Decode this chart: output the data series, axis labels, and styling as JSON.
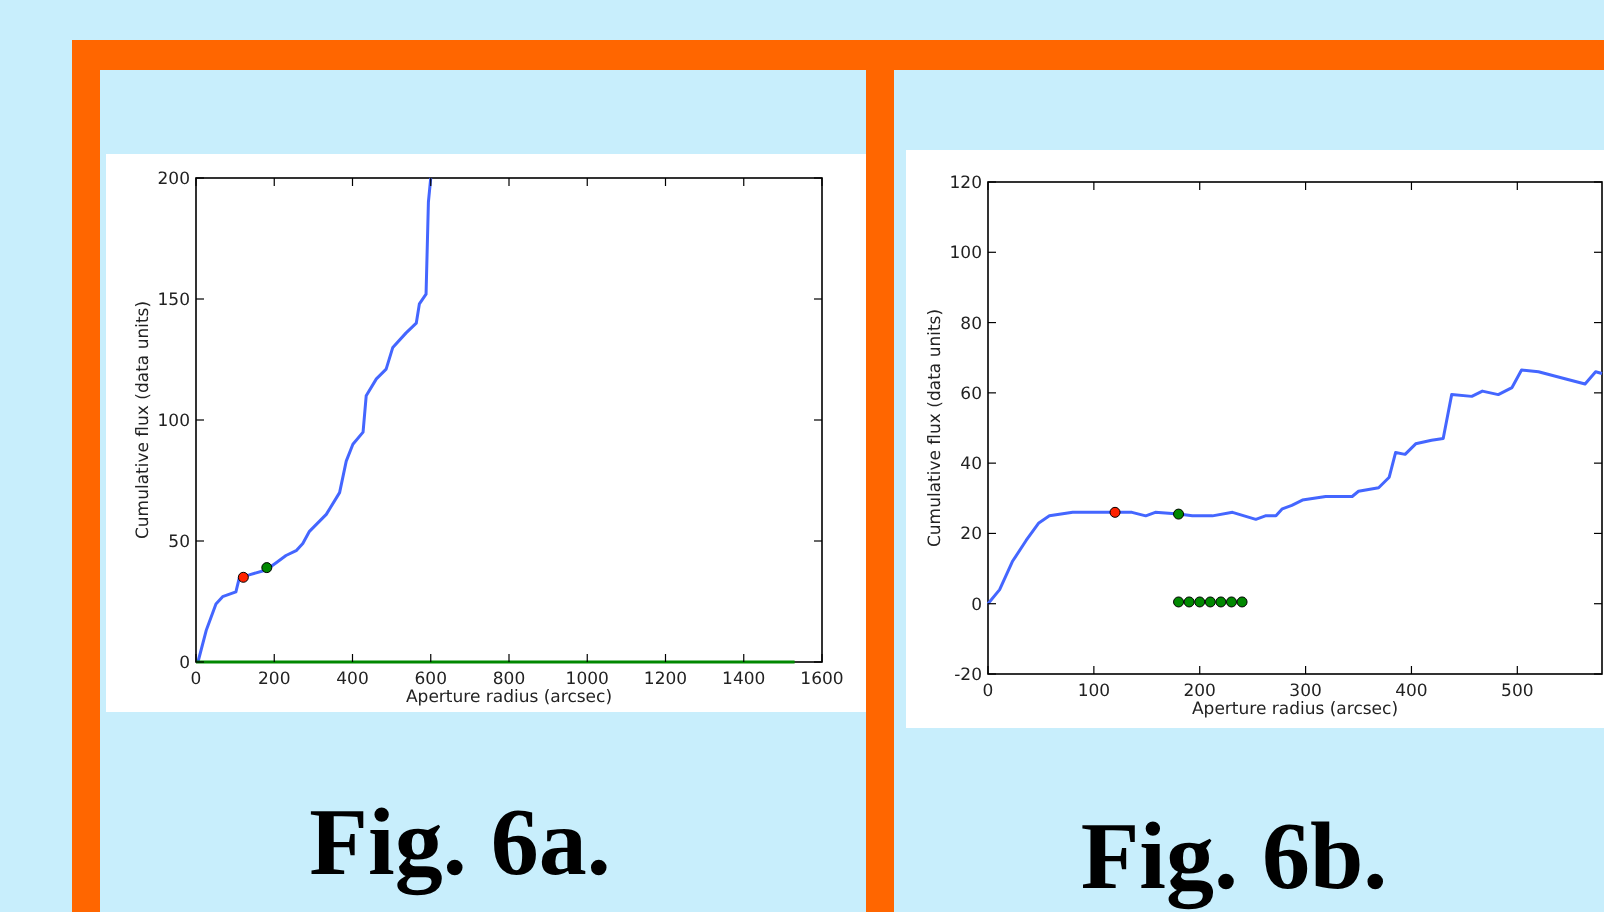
{
  "chart_data": [
    {
      "type": "line",
      "title": "Fig. 6a.",
      "xlabel": "Aperture radius (arcsec)",
      "ylabel": "Cumulative flux (data units)",
      "xlim": [
        0,
        1600
      ],
      "xticks": [
        0,
        200,
        400,
        600,
        800,
        1000,
        1200,
        1400,
        1600
      ],
      "ylim": [
        0,
        200
      ],
      "yticks": [
        0,
        50,
        100,
        150,
        200
      ],
      "series": [
        {
          "color": "#4466ff",
          "x": [
            5,
            26,
            51,
            68,
            102,
            111,
            136,
            179,
            205,
            230,
            256,
            273,
            290,
            333,
            367,
            384,
            401,
            427,
            435,
            461,
            486,
            503,
            537,
            563,
            571,
            588,
            594,
            600
          ],
          "values": [
            0,
            13,
            24,
            27,
            29,
            35,
            36,
            38,
            41,
            44,
            46,
            49,
            54,
            61,
            70,
            83,
            90,
            95,
            110,
            117,
            121,
            130,
            136,
            140,
            148,
            152,
            190,
            200
          ]
        },
        {
          "color": "#008800",
          "x": [
            0,
            1530
          ],
          "values": [
            0,
            0
          ]
        },
        {
          "type": "scatter",
          "color": "#ff2200",
          "x": [
            121
          ],
          "values": [
            35
          ]
        },
        {
          "type": "scatter",
          "color": "#008800",
          "x": [
            181
          ],
          "values": [
            39
          ]
        }
      ]
    },
    {
      "type": "line",
      "title": "Fig. 6b.",
      "xlabel": "Aperture radius (arcsec)",
      "ylabel": "Cumulative flux (data units)",
      "xlim": [
        0,
        580
      ],
      "xticks": [
        0,
        100,
        200,
        300,
        400,
        500
      ],
      "ylim": [
        -20,
        120
      ],
      "yticks": [
        -20,
        0,
        20,
        40,
        60,
        80,
        100,
        120
      ],
      "series": [
        {
          "color": "#4466ff",
          "x": [
            0,
            11,
            23,
            36,
            48,
            58,
            80,
            118,
            136,
            149,
            158,
            180,
            193,
            212,
            231,
            253,
            262,
            272,
            278,
            287,
            297,
            319,
            344,
            350,
            369,
            379,
            385,
            394,
            404,
            419,
            430,
            438,
            457,
            467,
            482,
            495,
            504,
            520,
            545,
            564,
            574,
            580
          ],
          "values": [
            0,
            4,
            12,
            18,
            23,
            25,
            26,
            26,
            26,
            25,
            26,
            25.5,
            25,
            25,
            26,
            24,
            25,
            25,
            27,
            28,
            29.5,
            30.5,
            30.5,
            32,
            33,
            36,
            43,
            42.5,
            45.5,
            46.5,
            47,
            59.5,
            59,
            60.5,
            59.5,
            61.5,
            66.5,
            66,
            64,
            62.5,
            66,
            65.5
          ]
        },
        {
          "type": "scatter",
          "color": "#ff2200",
          "x": [
            120
          ],
          "values": [
            26
          ]
        },
        {
          "type": "scatter",
          "color": "#008800",
          "x": [
            180
          ],
          "values": [
            25.5
          ]
        },
        {
          "type": "scatter",
          "color": "#008800",
          "x": [
            180,
            190,
            200,
            210,
            220,
            230,
            240
          ],
          "values": [
            0.5,
            0.5,
            0.5,
            0.5,
            0.5,
            0.5,
            0.5
          ]
        }
      ]
    }
  ]
}
